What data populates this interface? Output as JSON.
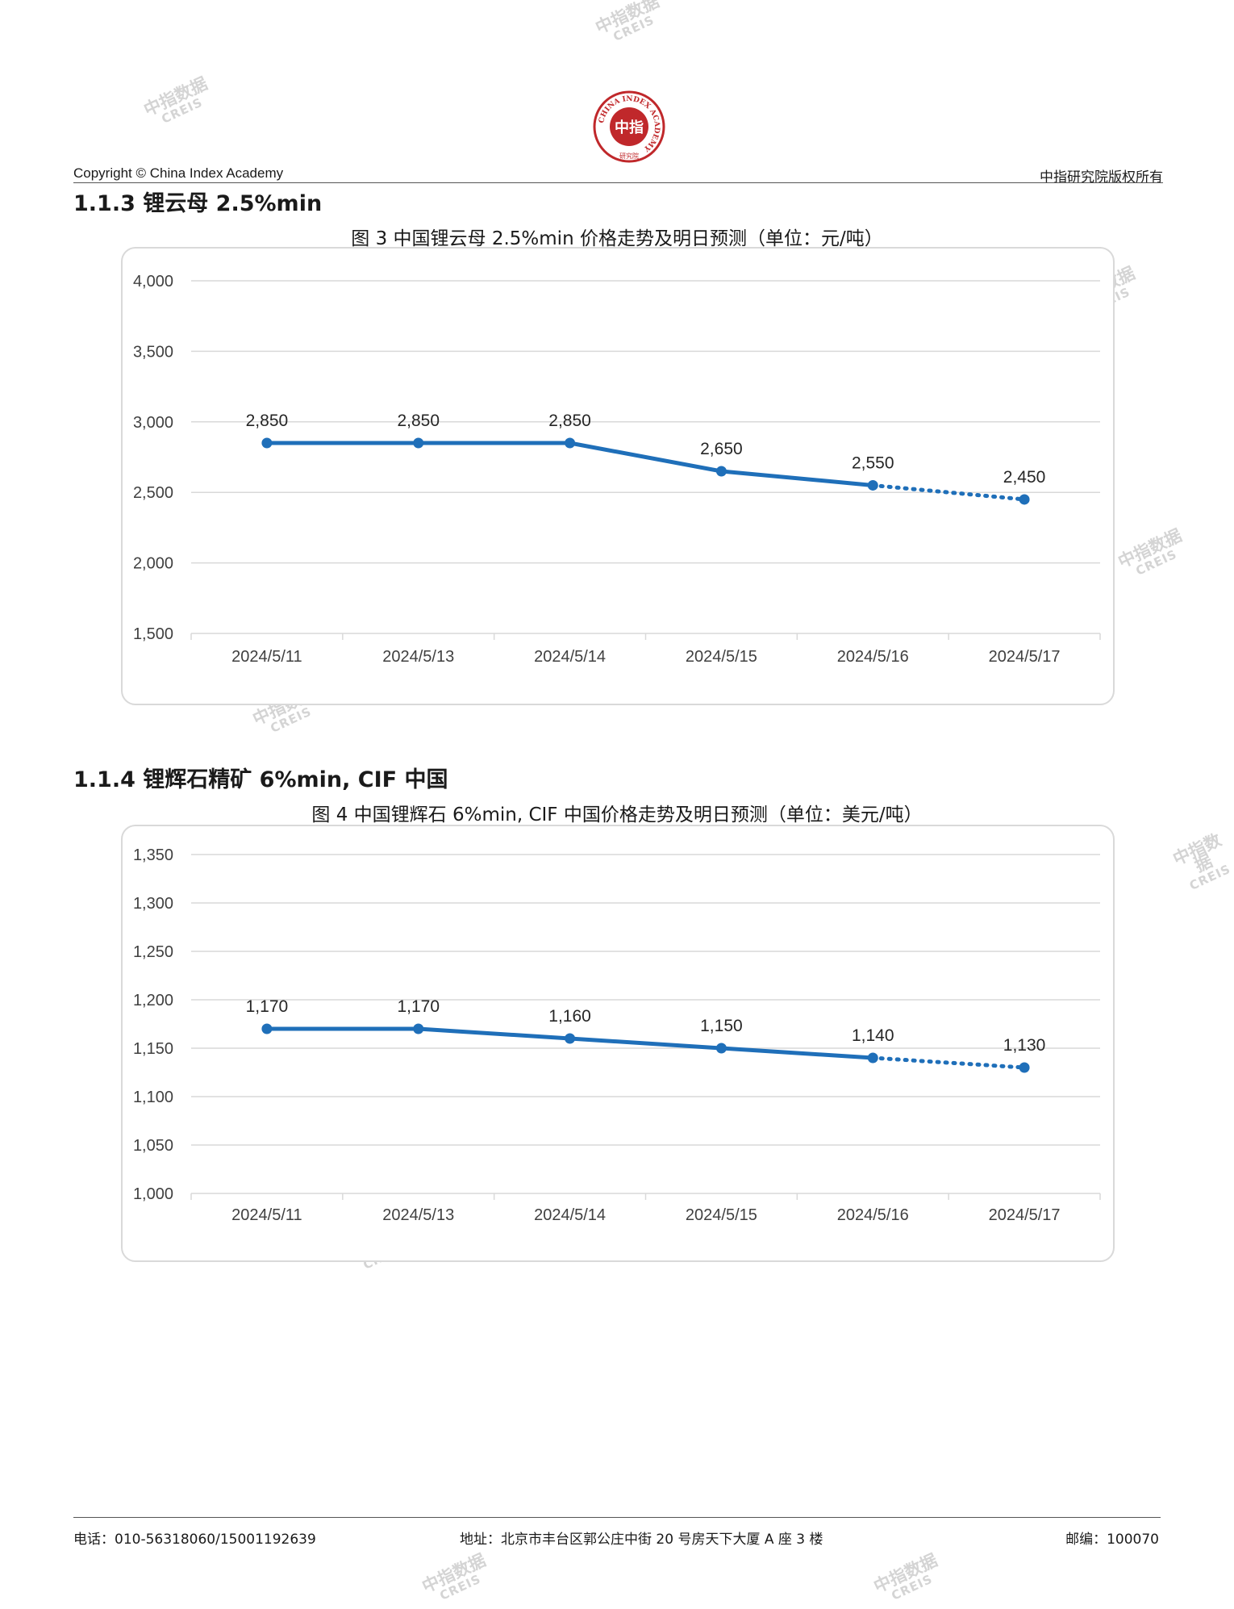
{
  "header": {
    "logo": {
      "name": "china-index-academy-seal",
      "ring_text": "CHINA INDEX ACADEMY",
      "center_text": "中指",
      "bottom_text": "研究院",
      "color": "#c0282b"
    },
    "copyright": "Copyright © China Index Academy",
    "rights": "中指研究院版权所有"
  },
  "sections": [
    {
      "heading": "1.1.3 锂云母 2.5%min",
      "caption": "图 3 中国锂云母 2.5%min 价格走势及明日预测（单位：元/吨）"
    },
    {
      "heading": "1.1.4 锂辉石精矿 6%min, CIF 中国",
      "caption": "图 4 中国锂辉石 6%min, CIF 中国价格走势及明日预测（单位：美元/吨）"
    }
  ],
  "chart_data": [
    {
      "type": "line",
      "categories": [
        "2024/5/11",
        "2024/5/13",
        "2024/5/14",
        "2024/5/15",
        "2024/5/16",
        "2024/5/17"
      ],
      "values": [
        2850,
        2850,
        2850,
        2650,
        2550,
        2450
      ],
      "value_labels": [
        "2,850",
        "2,850",
        "2,850",
        "2,650",
        "2,550",
        "2,450"
      ],
      "forecast_from_index": 4,
      "ylim": [
        1500,
        4000
      ],
      "yticks": [
        1500,
        2000,
        2500,
        3000,
        3500,
        4000
      ],
      "ytick_labels": [
        "1,500",
        "2,000",
        "2,500",
        "3,000",
        "3,500",
        "4,000"
      ],
      "grid": true,
      "line_color": "#1f6fb9"
    },
    {
      "type": "line",
      "categories": [
        "2024/5/11",
        "2024/5/13",
        "2024/5/14",
        "2024/5/15",
        "2024/5/16",
        "2024/5/17"
      ],
      "values": [
        1170,
        1170,
        1160,
        1150,
        1140,
        1130
      ],
      "value_labels": [
        "1,170",
        "1,170",
        "1,160",
        "1,150",
        "1,140",
        "1,130"
      ],
      "forecast_from_index": 4,
      "ylim": [
        1000,
        1350
      ],
      "yticks": [
        1000,
        1050,
        1100,
        1150,
        1200,
        1250,
        1300,
        1350
      ],
      "ytick_labels": [
        "1,000",
        "1,050",
        "1,100",
        "1,150",
        "1,200",
        "1,250",
        "1,300",
        "1,350"
      ],
      "grid": true,
      "line_color": "#1f6fb9"
    }
  ],
  "watermark": {
    "line1": "中指数据",
    "line2": "CREIS"
  },
  "footer": {
    "phone": "电话：010-56318060/15001192639",
    "address": "地址：北京市丰台区郭公庄中街 20 号房天下大厦 A 座 3 楼",
    "postcode": "邮编：100070"
  }
}
